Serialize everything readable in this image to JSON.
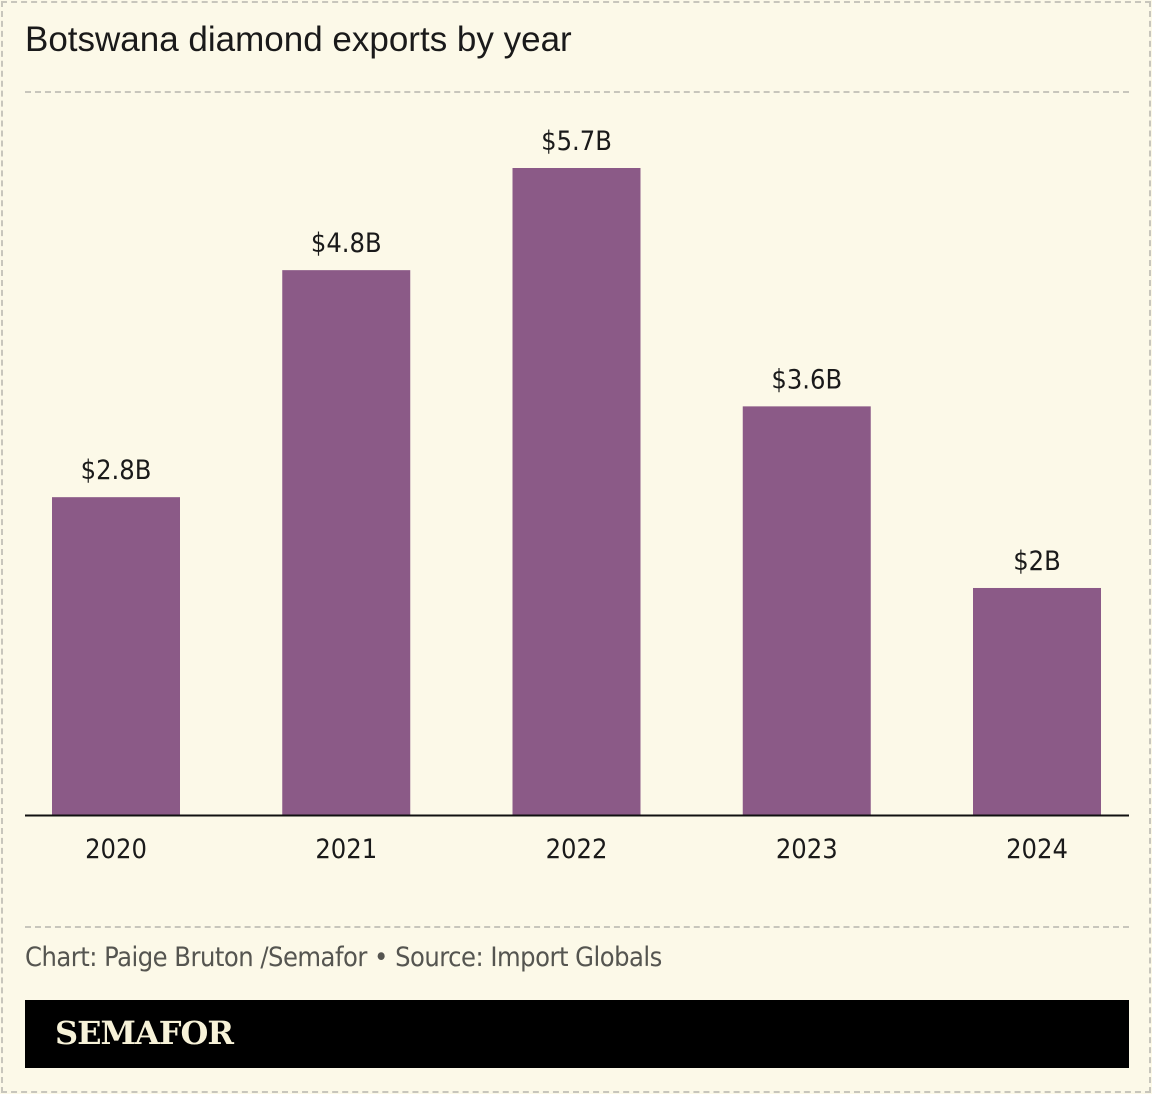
{
  "chart_data": {
    "type": "bar",
    "title": "Botswana diamond exports by year",
    "categories": [
      "2020",
      "2021",
      "2022",
      "2023",
      "2024"
    ],
    "values": [
      2.8,
      4.8,
      5.7,
      3.6,
      2.0
    ],
    "data_labels": [
      "$2.8B",
      "$4.8B",
      "$5.7B",
      "$3.6B",
      "$2B"
    ],
    "xlabel": "",
    "ylabel": "",
    "ylim": [
      0,
      5.7
    ],
    "grid": false,
    "bar_color": "#8b5a87"
  },
  "footer": {
    "source": "Chart: Paige Bruton /Semafor • Source: Import Globals",
    "logo": "SEMAFOR"
  }
}
